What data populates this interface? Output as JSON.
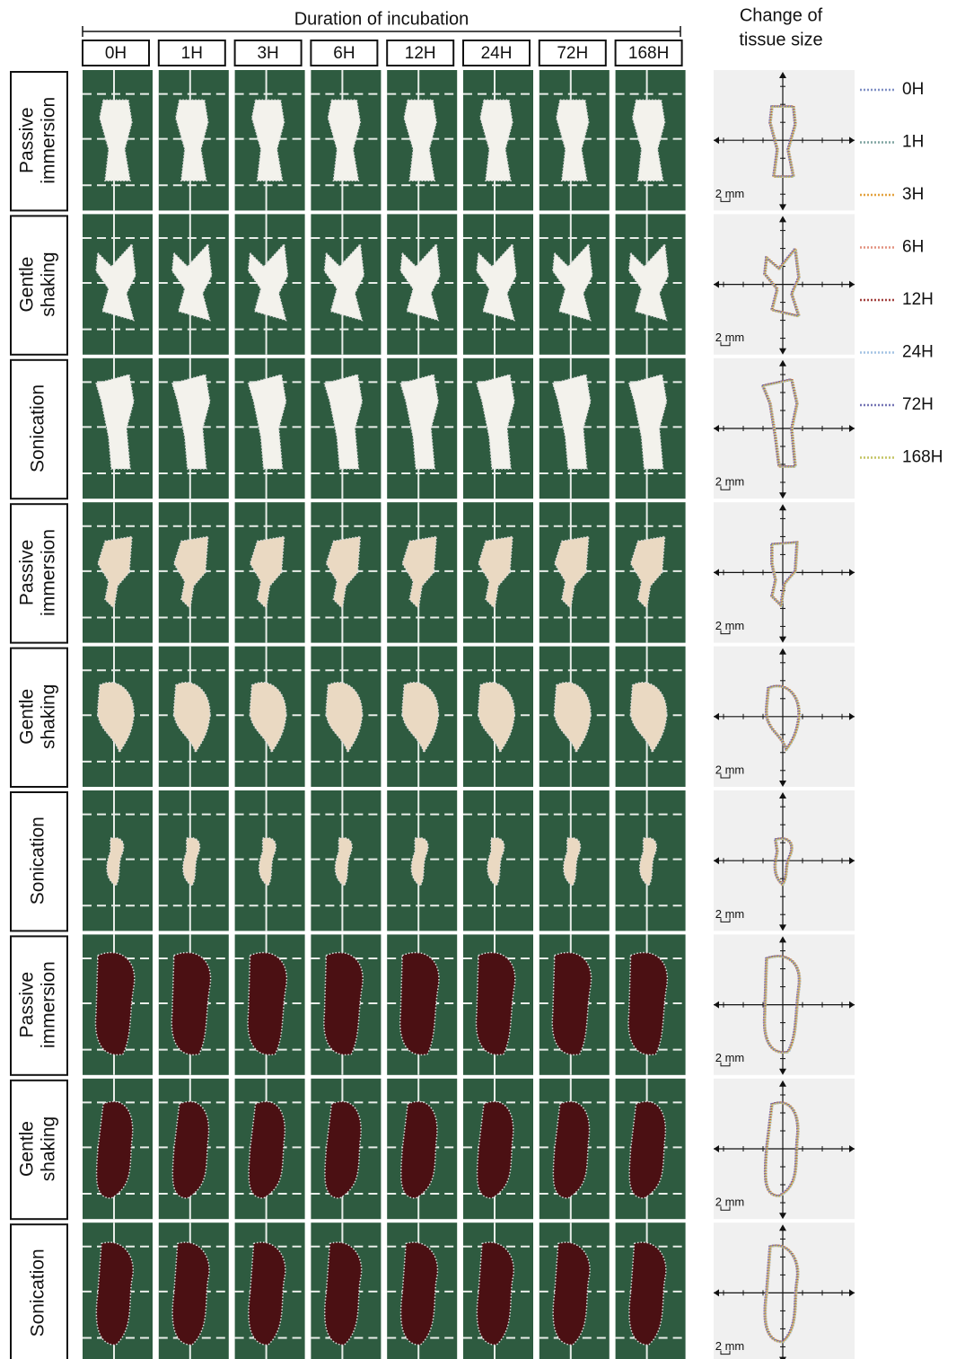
{
  "header": {
    "title": "Duration of incubation",
    "columns": [
      "0H",
      "1H",
      "3H",
      "6H",
      "12H",
      "24H",
      "72H",
      "168H"
    ]
  },
  "side_title": [
    "Change of",
    "tissue size"
  ],
  "rows": [
    {
      "label": [
        "Passive",
        "immersion"
      ],
      "scale": "2 mm"
    },
    {
      "label": [
        "Gentle",
        "shaking"
      ],
      "scale": "2 mm"
    },
    {
      "label": [
        "Sonication"
      ],
      "scale": "2 mm"
    },
    {
      "label": [
        "Passive",
        "immersion"
      ],
      "scale": "2 mm"
    },
    {
      "label": [
        "Gentle",
        "shaking"
      ],
      "scale": "2 mm"
    },
    {
      "label": [
        "Sonication"
      ],
      "scale": "2 mm"
    },
    {
      "label": [
        "Passive",
        "immersion"
      ],
      "scale": "2 mm"
    },
    {
      "label": [
        "Gentle",
        "shaking"
      ],
      "scale": "2 mm"
    },
    {
      "label": [
        "Sonication"
      ],
      "scale": "2 mm"
    }
  ],
  "legend": [
    {
      "label": "0H",
      "color": "#7f8fc4"
    },
    {
      "label": "1H",
      "color": "#7fa3a0"
    },
    {
      "label": "3H",
      "color": "#e3a23f"
    },
    {
      "label": "6H",
      "color": "#e2917f"
    },
    {
      "label": "12H",
      "color": "#a2413f"
    },
    {
      "label": "24H",
      "color": "#a3c3e3"
    },
    {
      "label": "72H",
      "color": "#7474b4"
    },
    {
      "label": "168H",
      "color": "#c4c462"
    }
  ]
}
